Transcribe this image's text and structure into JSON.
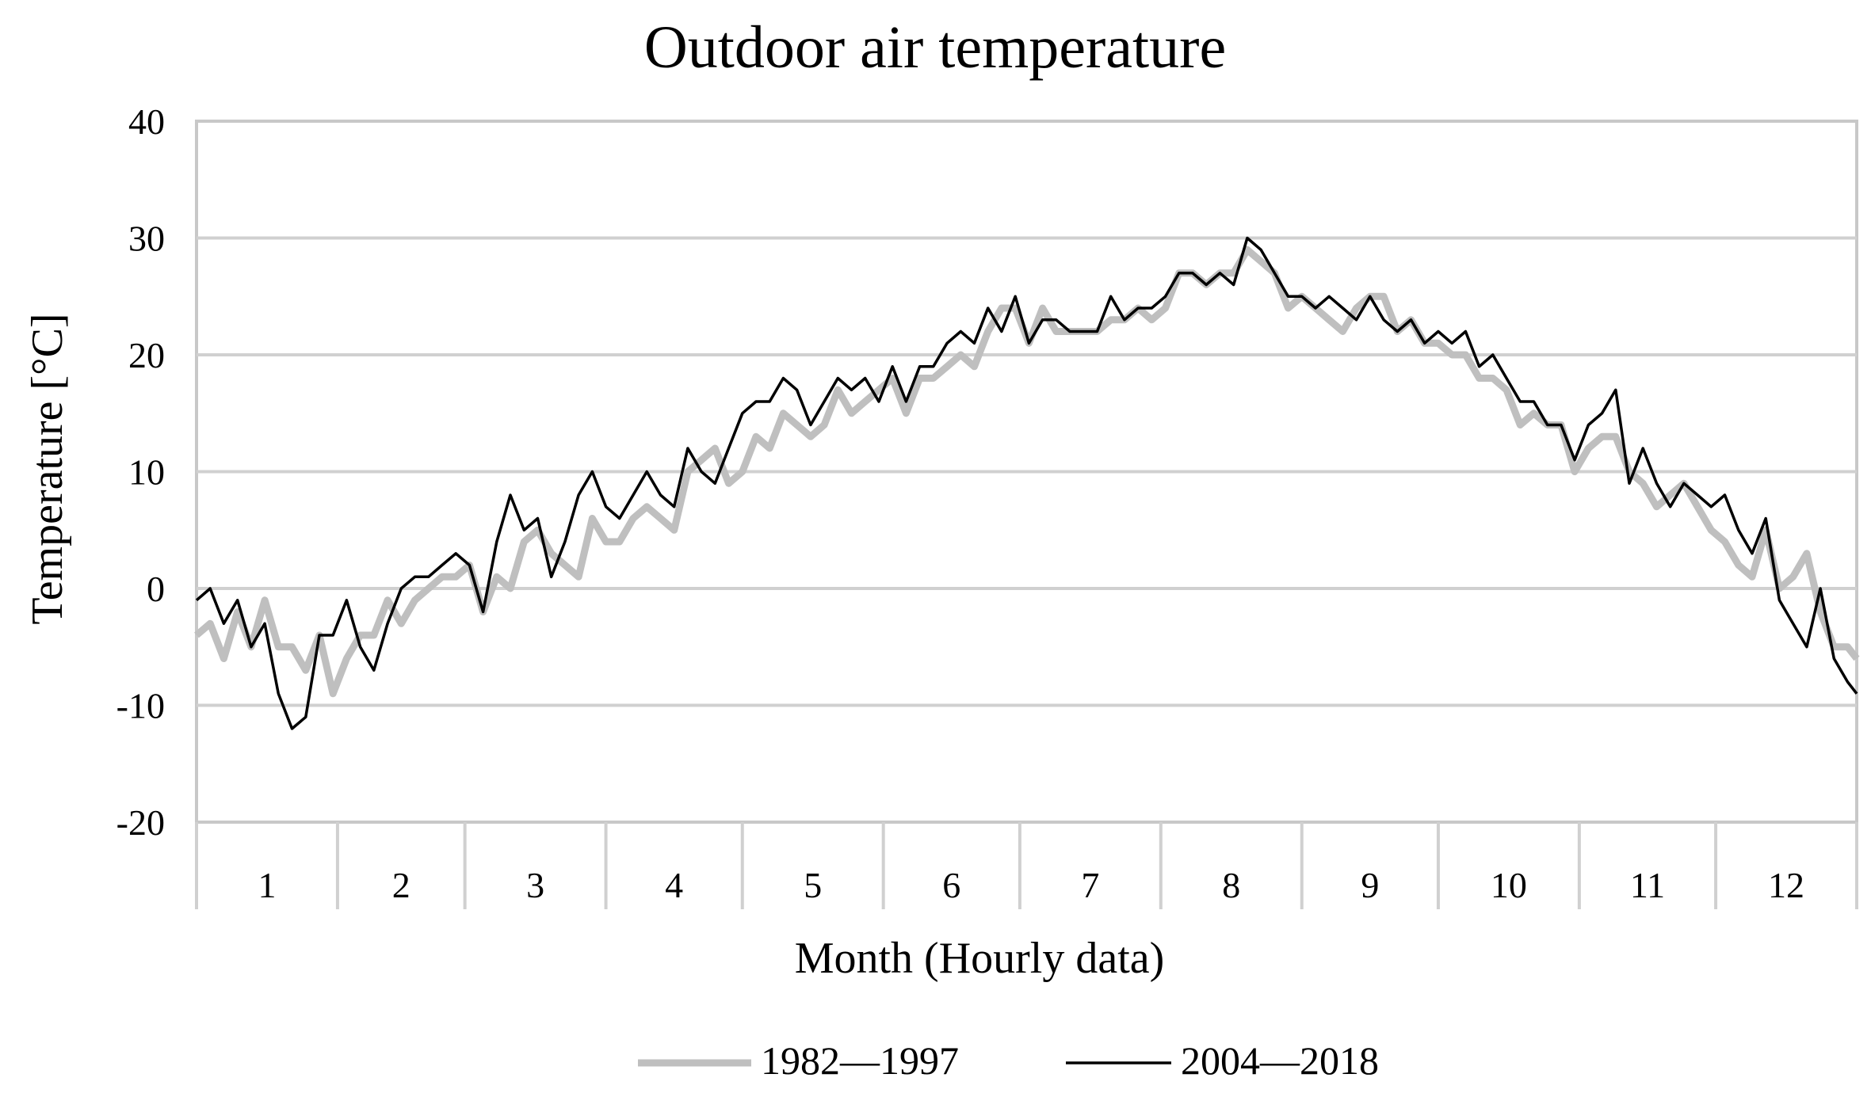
{
  "chart_data": {
    "type": "line",
    "title": "Outdoor air temperature",
    "xlabel": "Month (Hourly data)",
    "ylabel": "Temperature [°C]",
    "ylim": [
      -20,
      40
    ],
    "yticks": [
      -20,
      -10,
      0,
      10,
      20,
      30,
      40
    ],
    "ytick_labels": [
      "-20",
      "-10",
      "0",
      "10",
      "20",
      "30",
      "40"
    ],
    "grid": true,
    "legend_position": "bottom",
    "month_labels": [
      "1",
      "2",
      "3",
      "4",
      "5",
      "6",
      "7",
      "8",
      "9",
      "10",
      "11",
      "12"
    ],
    "month_days": [
      31,
      28,
      31,
      30,
      31,
      30,
      31,
      31,
      30,
      31,
      30,
      31
    ],
    "xlim_day": [
      0,
      365
    ],
    "series": [
      {
        "name": "1982—1997",
        "color": "#bfbfbf",
        "line_weight": "thick",
        "x_day": [
          0,
          3,
          6,
          9,
          12,
          15,
          18,
          21,
          24,
          27,
          30,
          33,
          36,
          39,
          42,
          45,
          48,
          51,
          54,
          57,
          60,
          63,
          66,
          69,
          72,
          75,
          78,
          81,
          84,
          87,
          90,
          93,
          96,
          99,
          102,
          105,
          108,
          111,
          114,
          117,
          120,
          123,
          126,
          129,
          132,
          135,
          138,
          141,
          144,
          147,
          150,
          153,
          156,
          159,
          162,
          165,
          168,
          171,
          174,
          177,
          180,
          183,
          186,
          189,
          192,
          195,
          198,
          201,
          204,
          207,
          210,
          213,
          216,
          219,
          222,
          225,
          228,
          231,
          234,
          237,
          240,
          243,
          246,
          249,
          252,
          255,
          258,
          261,
          264,
          267,
          270,
          273,
          276,
          279,
          282,
          285,
          288,
          291,
          294,
          297,
          300,
          303,
          306,
          309,
          312,
          315,
          318,
          321,
          324,
          327,
          330,
          333,
          336,
          339,
          342,
          345,
          348,
          351,
          354,
          357,
          360,
          363,
          365
        ],
        "values": [
          -4,
          -3,
          -6,
          -2,
          -5,
          -1,
          -5,
          -5,
          -7,
          -4,
          -9,
          -6,
          -4,
          -4,
          -1,
          -3,
          -1,
          0,
          1,
          1,
          2,
          -2,
          1,
          0,
          4,
          5,
          3,
          2,
          1,
          6,
          4,
          4,
          6,
          7,
          6,
          5,
          10,
          11,
          12,
          9,
          10,
          13,
          12,
          15,
          14,
          13,
          14,
          17,
          15,
          16,
          17,
          18,
          15,
          18,
          18,
          19,
          20,
          19,
          22,
          24,
          24,
          21,
          24,
          22,
          22,
          22,
          22,
          23,
          23,
          24,
          23,
          24,
          27,
          27,
          26,
          27,
          27,
          29,
          28,
          27,
          24,
          25,
          24,
          23,
          22,
          24,
          25,
          25,
          22,
          23,
          21,
          21,
          20,
          20,
          18,
          18,
          17,
          14,
          15,
          14,
          14,
          10,
          12,
          13,
          13,
          10,
          9,
          7,
          8,
          9,
          7,
          5,
          4,
          2,
          1,
          5,
          0,
          1,
          3,
          -2,
          -5,
          -5,
          -6
        ]
      },
      {
        "name": "2004—2018",
        "color": "#000000",
        "line_weight": "thin",
        "x_day": [
          0,
          3,
          6,
          9,
          12,
          15,
          18,
          21,
          24,
          27,
          30,
          33,
          36,
          39,
          42,
          45,
          48,
          51,
          54,
          57,
          60,
          63,
          66,
          69,
          72,
          75,
          78,
          81,
          84,
          87,
          90,
          93,
          96,
          99,
          102,
          105,
          108,
          111,
          114,
          117,
          120,
          123,
          126,
          129,
          132,
          135,
          138,
          141,
          144,
          147,
          150,
          153,
          156,
          159,
          162,
          165,
          168,
          171,
          174,
          177,
          180,
          183,
          186,
          189,
          192,
          195,
          198,
          201,
          204,
          207,
          210,
          213,
          216,
          219,
          222,
          225,
          228,
          231,
          234,
          237,
          240,
          243,
          246,
          249,
          252,
          255,
          258,
          261,
          264,
          267,
          270,
          273,
          276,
          279,
          282,
          285,
          288,
          291,
          294,
          297,
          300,
          303,
          306,
          309,
          312,
          315,
          318,
          321,
          324,
          327,
          330,
          333,
          336,
          339,
          342,
          345,
          348,
          351,
          354,
          357,
          360,
          363,
          365
        ],
        "values": [
          -1,
          0,
          -3,
          -1,
          -5,
          -3,
          -9,
          -12,
          -11,
          -4,
          -4,
          -1,
          -5,
          -7,
          -3,
          0,
          1,
          1,
          2,
          3,
          2,
          -2,
          4,
          8,
          5,
          6,
          1,
          4,
          8,
          10,
          7,
          6,
          8,
          10,
          8,
          7,
          12,
          10,
          9,
          12,
          15,
          16,
          16,
          18,
          17,
          14,
          16,
          18,
          17,
          18,
          16,
          19,
          16,
          19,
          19,
          21,
          22,
          21,
          24,
          22,
          25,
          21,
          23,
          23,
          22,
          22,
          22,
          25,
          23,
          24,
          24,
          25,
          27,
          27,
          26,
          27,
          26,
          30,
          29,
          27,
          25,
          25,
          24,
          25,
          24,
          23,
          25,
          23,
          22,
          23,
          21,
          22,
          21,
          22,
          19,
          20,
          18,
          16,
          16,
          14,
          14,
          11,
          14,
          15,
          17,
          9,
          12,
          9,
          7,
          9,
          8,
          7,
          8,
          5,
          3,
          6,
          -1,
          -3,
          -5,
          0,
          -6,
          -8,
          -9
        ]
      }
    ]
  }
}
